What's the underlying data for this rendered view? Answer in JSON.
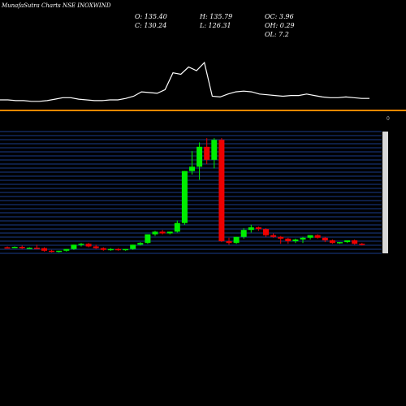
{
  "header": {
    "title": "MunafaSutra Charts NSE INOXWIND",
    "open": "O: 135.40",
    "high": "H: 135.79",
    "change": "OC: 3.96",
    "close": "C: 130.24",
    "low": "L: 126.31",
    "oh": "OH: 0.29",
    "ol": "OL: 7.2",
    "zero_marker": "0"
  },
  "colors": {
    "background": "#000000",
    "up": "#00ee00",
    "down": "#ee0000",
    "line": "#ffffff",
    "divider": "#ff8800",
    "grid": "#1a3d8a"
  },
  "chart_data": [
    {
      "type": "line",
      "panel": "top indicator",
      "values": [
        10,
        10,
        9,
        9,
        8,
        8,
        9,
        11,
        13,
        13,
        11,
        10,
        9,
        9,
        10,
        10,
        12,
        15,
        21,
        20,
        19,
        24,
        47,
        45,
        55,
        50,
        61,
        15,
        14,
        18,
        21,
        22,
        21,
        18,
        17,
        16,
        15,
        16,
        16,
        18,
        16,
        14,
        13,
        13,
        14,
        13,
        12,
        12
      ]
    },
    {
      "type": "candlestick",
      "panel": "price",
      "series": [
        {
          "o": 4,
          "h": 5,
          "l": 3,
          "c": 3.5
        },
        {
          "o": 3.5,
          "h": 5,
          "l": 3,
          "c": 4.5
        },
        {
          "o": 4.5,
          "h": 6,
          "l": 2,
          "c": 3
        },
        {
          "o": 3,
          "h": 4,
          "l": 2,
          "c": 3.5
        },
        {
          "o": 3.5,
          "h": 7,
          "l": 2,
          "c": 3
        },
        {
          "o": 3,
          "h": 4,
          "l": -1,
          "c": 0
        },
        {
          "o": 0,
          "h": 1,
          "l": -2,
          "c": -1
        },
        {
          "o": -1,
          "h": 0,
          "l": -2,
          "c": 0
        },
        {
          "o": 0,
          "h": 2,
          "l": -1,
          "c": 2
        },
        {
          "o": 2,
          "h": 7,
          "l": 1,
          "c": 7
        },
        {
          "o": 7,
          "h": 9,
          "l": 5,
          "c": 8
        },
        {
          "o": 8,
          "h": 9,
          "l": 4,
          "c": 5
        },
        {
          "o": 5,
          "h": 7,
          "l": 2,
          "c": 3
        },
        {
          "o": 3,
          "h": 4,
          "l": 0,
          "c": 1
        },
        {
          "o": 1,
          "h": 3,
          "l": 0,
          "c": 2
        },
        {
          "o": 2,
          "h": 3,
          "l": 0,
          "c": 1
        },
        {
          "o": 1,
          "h": 2,
          "l": 0,
          "c": 2
        },
        {
          "o": 2,
          "h": 7,
          "l": 1,
          "c": 7
        },
        {
          "o": 7,
          "h": 10,
          "l": 6,
          "c": 9
        },
        {
          "o": 9,
          "h": 19,
          "l": 8,
          "c": 19
        },
        {
          "o": 19,
          "h": 23,
          "l": 17,
          "c": 22
        },
        {
          "o": 22,
          "h": 24,
          "l": 19,
          "c": 20
        },
        {
          "o": 20,
          "h": 22,
          "l": 19,
          "c": 22
        },
        {
          "o": 22,
          "h": 35,
          "l": 21,
          "c": 32
        },
        {
          "o": 32,
          "h": 92,
          "l": 30,
          "c": 92
        },
        {
          "o": 92,
          "h": 115,
          "l": 88,
          "c": 97
        },
        {
          "o": 97,
          "h": 125,
          "l": 82,
          "c": 120
        },
        {
          "o": 120,
          "h": 130,
          "l": 100,
          "c": 105
        },
        {
          "o": 105,
          "h": 130,
          "l": 95,
          "c": 128
        },
        {
          "o": 128,
          "h": 130,
          "l": 10,
          "c": 11
        },
        {
          "o": 11,
          "h": 15,
          "l": 7,
          "c": 9
        },
        {
          "o": 9,
          "h": 16,
          "l": 8,
          "c": 16
        },
        {
          "o": 16,
          "h": 26,
          "l": 14,
          "c": 24
        },
        {
          "o": 24,
          "h": 30,
          "l": 21,
          "c": 27
        },
        {
          "o": 27,
          "h": 28,
          "l": 23,
          "c": 25
        },
        {
          "o": 25,
          "h": 26,
          "l": 16,
          "c": 18
        },
        {
          "o": 18,
          "h": 20,
          "l": 15,
          "c": 16
        },
        {
          "o": 16,
          "h": 17,
          "l": 8,
          "c": 14
        },
        {
          "o": 14,
          "h": 15,
          "l": 8,
          "c": 11
        },
        {
          "o": 11,
          "h": 14,
          "l": 9,
          "c": 13
        },
        {
          "o": 13,
          "h": 16,
          "l": 9,
          "c": 15
        },
        {
          "o": 15,
          "h": 18,
          "l": 13,
          "c": 18
        },
        {
          "o": 18,
          "h": 19,
          "l": 14,
          "c": 15
        },
        {
          "o": 15,
          "h": 16,
          "l": 10,
          "c": 12
        },
        {
          "o": 12,
          "h": 13,
          "l": 8,
          "c": 9
        },
        {
          "o": 9,
          "h": 10,
          "l": 8,
          "c": 10
        },
        {
          "o": 10,
          "h": 12,
          "l": 9,
          "c": 12
        },
        {
          "o": 12,
          "h": 13,
          "l": 7,
          "c": 8
        },
        {
          "o": 8,
          "h": 9,
          "l": 6,
          "c": 7
        }
      ]
    }
  ]
}
